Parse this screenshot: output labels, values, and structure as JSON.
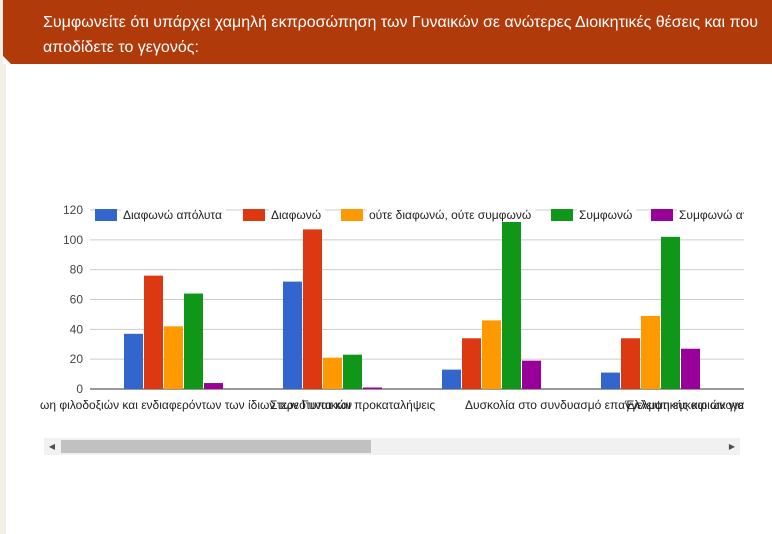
{
  "question": {
    "text": "Συμφωνείτε ότι υπάρχει χαμηλή εκπροσώπηση των Γυναικών σε ανώτερες Διοικητικές θέσεις και που αποδίδετε το γεγονός:"
  },
  "colors": {
    "header_bg": "#b13a0a",
    "series": [
      "#3366cc",
      "#dc3912",
      "#ff9900",
      "#109618",
      "#990099"
    ]
  },
  "chart_data": {
    "type": "bar",
    "title": "",
    "xlabel": "",
    "ylabel": "",
    "ylim": [
      0,
      120
    ],
    "yticks": [
      0,
      20,
      40,
      60,
      80,
      100,
      120
    ],
    "grid": true,
    "legend_position": "top",
    "categories_visible": [
      "ωη φιλοδοξιών και ενδιαφερόντων των ίδιων των Γυναικών",
      "Στερεότυπα και προκαταλήψεις",
      "Δυσκολία στο συνδυασμό επαγγελματικής και οικογενειακής ζωής",
      "Έλλειψη ευκαιριών για εκπαίδευση και ανάπτυξη"
    ],
    "series": [
      {
        "name": "Διαφωνώ απόλυτα",
        "values": [
          37,
          72,
          13,
          11
        ]
      },
      {
        "name": "Διαφωνώ",
        "values": [
          76,
          107,
          34,
          34
        ]
      },
      {
        "name": "ούτε διαφωνώ, ούτε συμφωνώ",
        "values": [
          42,
          21,
          46,
          49
        ]
      },
      {
        "name": "Συμφωνώ",
        "values": [
          64,
          23,
          112,
          102
        ]
      },
      {
        "name": "Συμφωνώ απόλυτα",
        "values": [
          4,
          1,
          19,
          27
        ]
      }
    ]
  },
  "scrollbar": {
    "left_arrow_icon": "◀",
    "right_arrow_icon": "▶"
  }
}
